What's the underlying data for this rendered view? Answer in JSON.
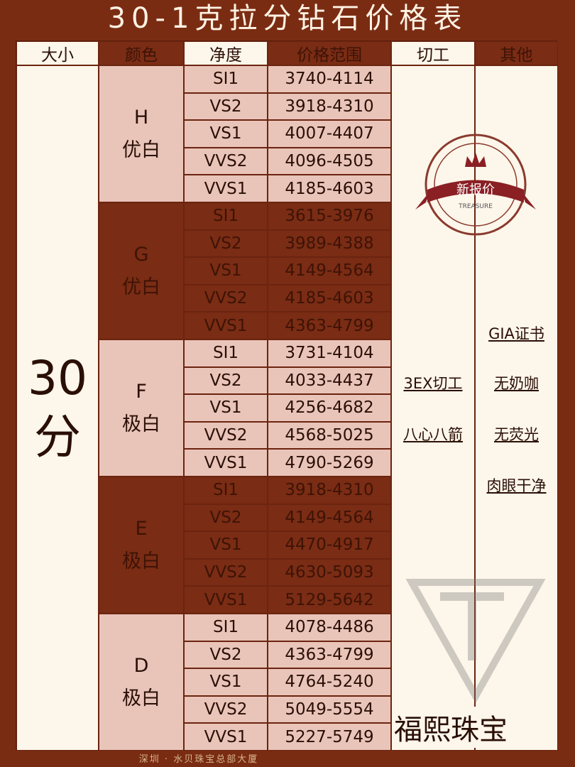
{
  "title": "30-1克拉分钻石价格表",
  "headers": [
    "大小",
    "颜色",
    "净度",
    "价格范围",
    "切工",
    "其他"
  ],
  "size": {
    "num": "30",
    "unit": "分"
  },
  "groups": [
    {
      "grade": "H",
      "desc": "优白",
      "theme": "pink",
      "rows": [
        [
          "SI1",
          "3740-4114"
        ],
        [
          "VS2",
          "3918-4310"
        ],
        [
          "VS1",
          "4007-4407"
        ],
        [
          "VVS2",
          "4096-4505"
        ],
        [
          "VVS1",
          "4185-4603"
        ]
      ]
    },
    {
      "grade": "G",
      "desc": "优白",
      "theme": "dark",
      "rows": [
        [
          "SI1",
          "3615-3976"
        ],
        [
          "VS2",
          "3989-4388"
        ],
        [
          "VS1",
          "4149-4564"
        ],
        [
          "VVS2",
          "4185-4603"
        ],
        [
          "VVS1",
          "4363-4799"
        ]
      ]
    },
    {
      "grade": "F",
      "desc": "极白",
      "theme": "pink",
      "rows": [
        [
          "SI1",
          "3731-4104"
        ],
        [
          "VS2",
          "4033-4437"
        ],
        [
          "VS1",
          "4256-4682"
        ],
        [
          "VVS2",
          "4568-5025"
        ],
        [
          "VVS1",
          "4790-5269"
        ]
      ]
    },
    {
      "grade": "E",
      "desc": "极白",
      "theme": "dark",
      "rows": [
        [
          "SI1",
          "3918-4310"
        ],
        [
          "VS2",
          "4149-4564"
        ],
        [
          "VS1",
          "4470-4917"
        ],
        [
          "VVS2",
          "4630-5093"
        ],
        [
          "VVS1",
          "5129-5642"
        ]
      ]
    },
    {
      "grade": "D",
      "desc": "极白",
      "theme": "pink",
      "rows": [
        [
          "SI1",
          "4078-4486"
        ],
        [
          "VS2",
          "4363-4799"
        ],
        [
          "VS1",
          "4764-5240"
        ],
        [
          "VVS2",
          "5049-5554"
        ],
        [
          "VVS1",
          "5227-5749"
        ]
      ]
    }
  ],
  "cut": [
    "3EX切工",
    "八心八箭"
  ],
  "other": [
    "GIA证书",
    "无奶咖",
    "无荧光",
    "肉眼干净"
  ],
  "stamp": {
    "main": "新报价",
    "sub": "TREASURE"
  },
  "brand": "福熙珠宝",
  "footer": "深圳 · 水贝珠宝总部大厦",
  "colors": {
    "background": "#7a2c13",
    "cream": "#fdf6ea",
    "pink": "#e9c4b9",
    "dark": "#7a2c14"
  }
}
